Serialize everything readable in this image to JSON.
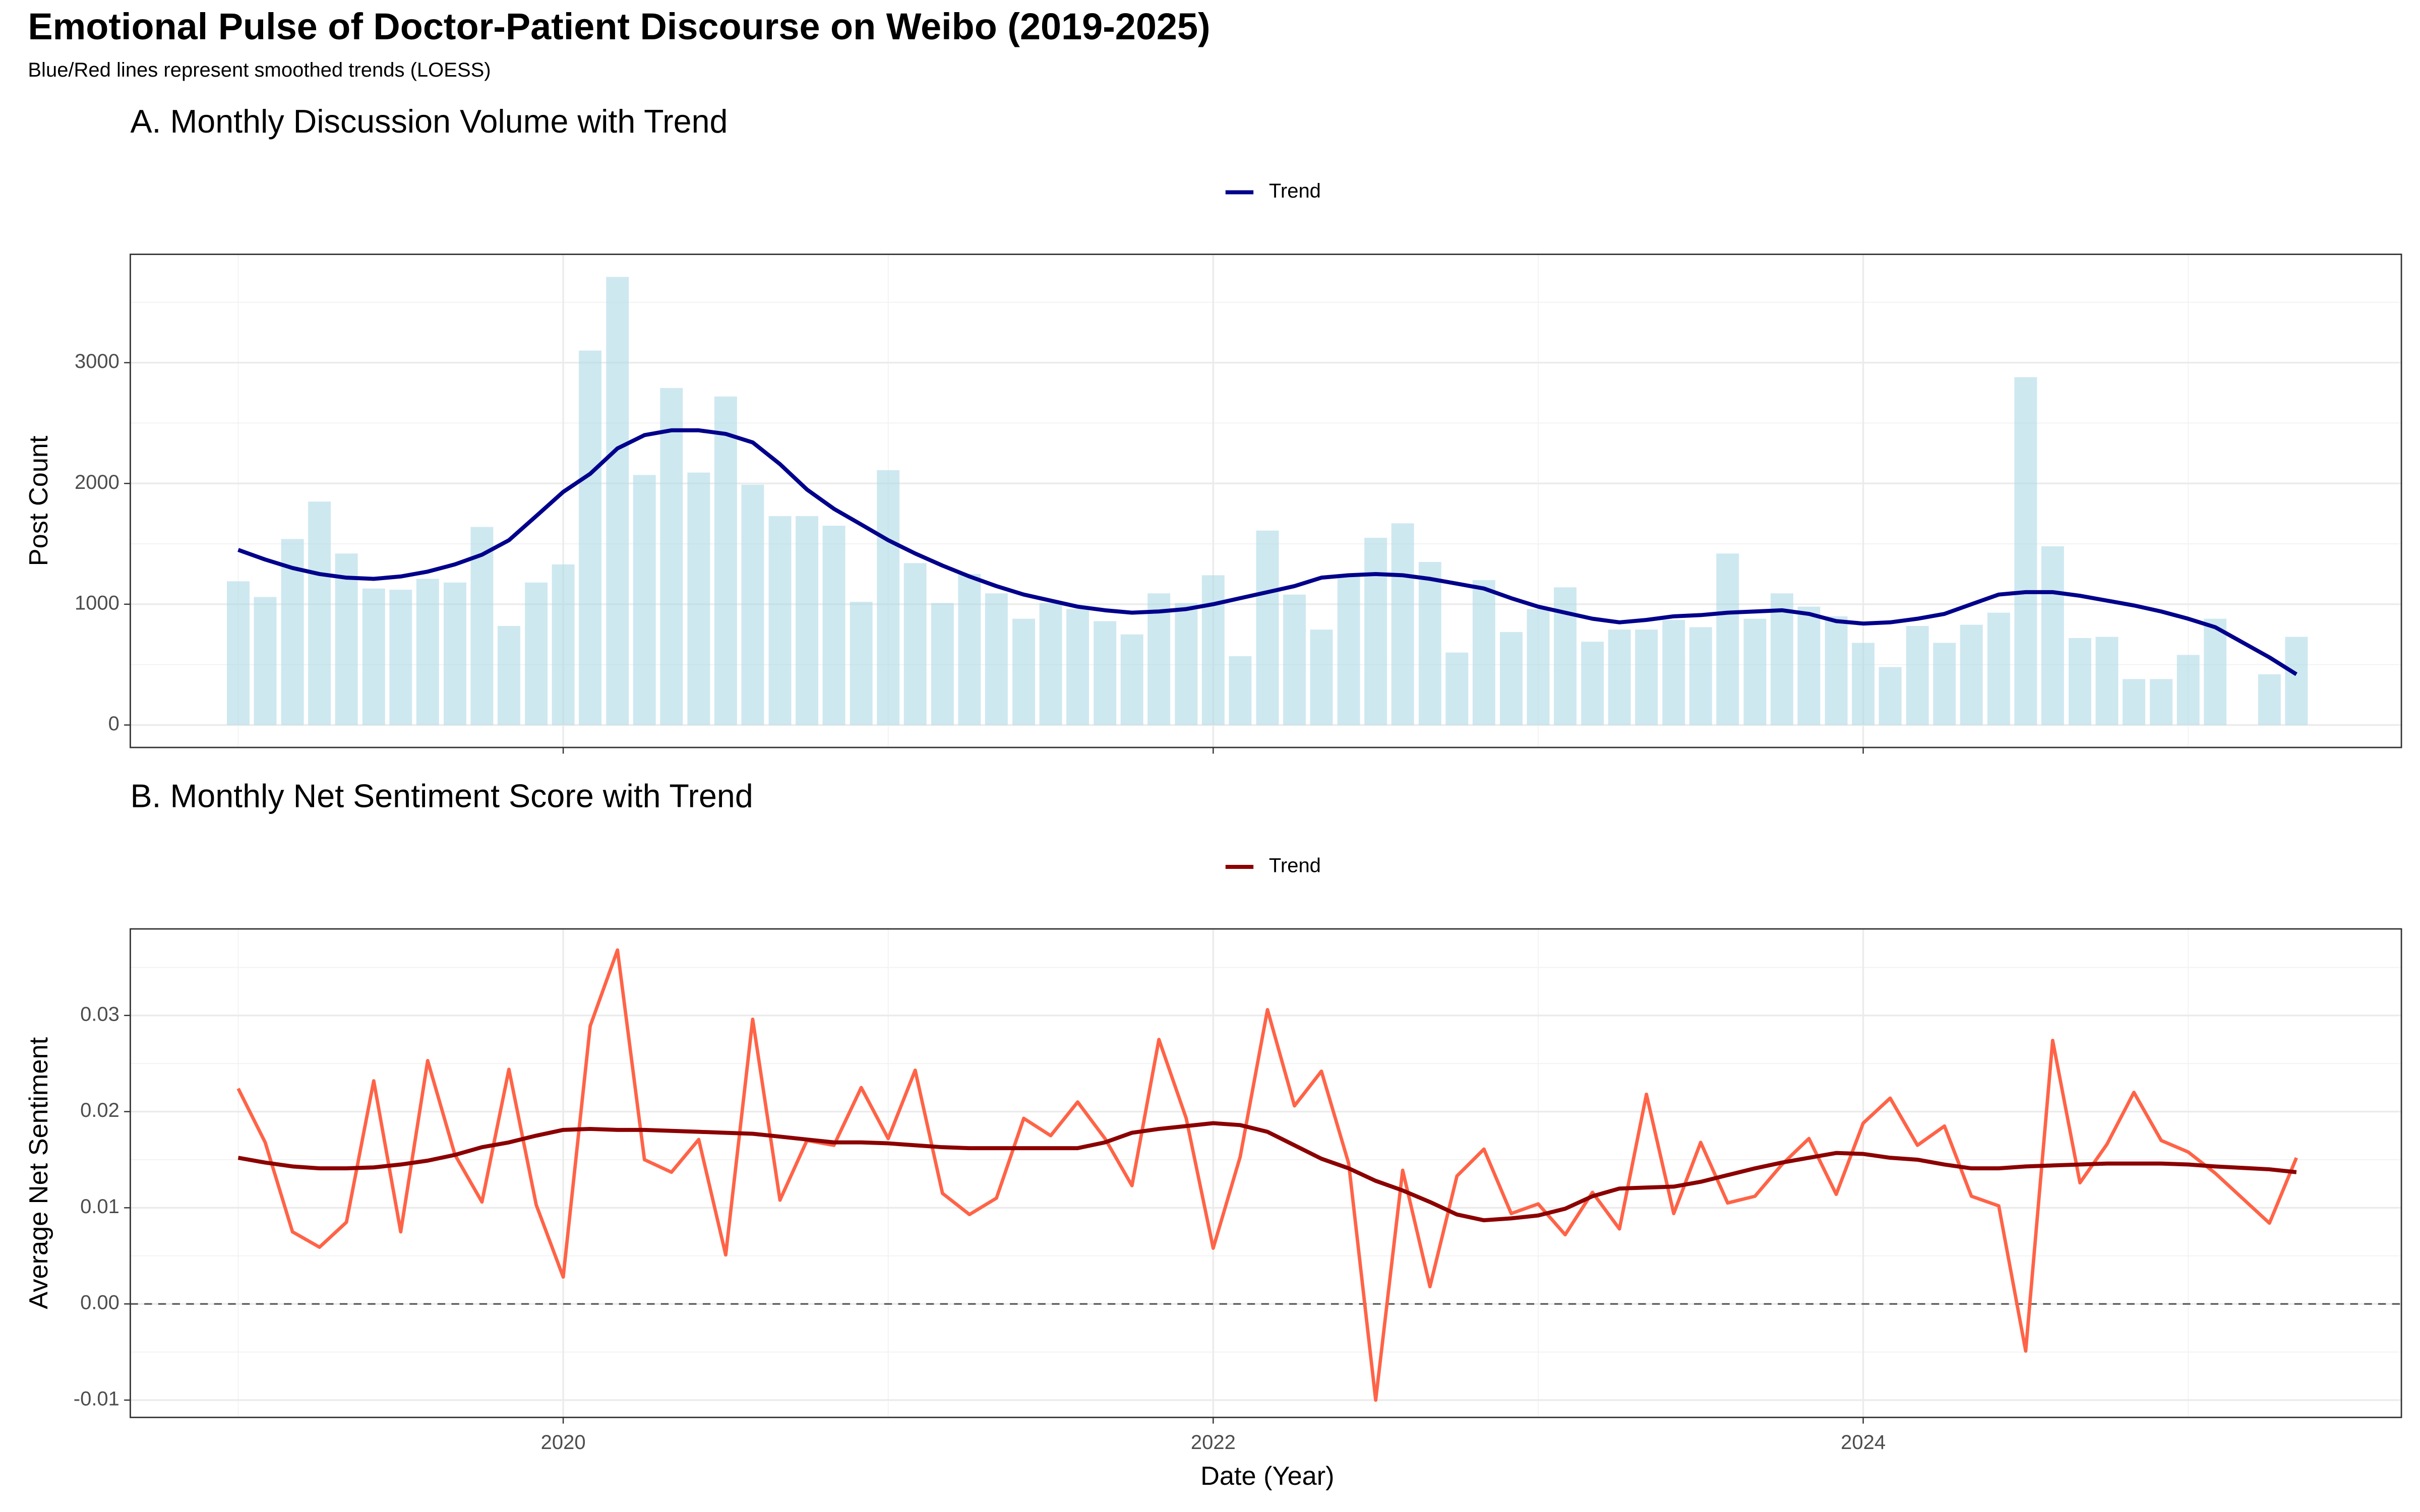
{
  "title": "Emotional Pulse of Doctor-Patient Discourse on Weibo (2019-2025)",
  "subtitle": "Blue/Red lines represent smoothed trends (LOESS)",
  "x_label": "Date (Year)",
  "chart_data": [
    {
      "type": "bar",
      "title": "A. Monthly Discussion Volume with Trend",
      "y_label": "Post Count",
      "x": [
        2019,
        2019.083,
        2019.167,
        2019.25,
        2019.333,
        2019.417,
        2019.5,
        2019.583,
        2019.667,
        2019.75,
        2019.833,
        2019.917,
        2020,
        2020.083,
        2020.167,
        2020.25,
        2020.333,
        2020.417,
        2020.5,
        2020.583,
        2020.667,
        2020.75,
        2020.833,
        2020.917,
        2021,
        2021.083,
        2021.167,
        2021.25,
        2021.333,
        2021.417,
        2021.5,
        2021.583,
        2021.667,
        2021.75,
        2021.833,
        2021.917,
        2022,
        2022.083,
        2022.167,
        2022.25,
        2022.333,
        2022.417,
        2022.5,
        2022.583,
        2022.667,
        2022.75,
        2022.833,
        2022.917,
        2023,
        2023.083,
        2023.167,
        2023.25,
        2023.333,
        2023.417,
        2023.5,
        2023.583,
        2023.667,
        2023.75,
        2023.833,
        2023.917,
        2024,
        2024.083,
        2024.167,
        2024.25,
        2024.333,
        2024.417,
        2024.5,
        2024.583,
        2024.667,
        2024.75,
        2024.833,
        2024.917,
        2025,
        2025.083,
        2025.25,
        2025.333
      ],
      "series": [
        {
          "type": "bar",
          "color": "#add8e6",
          "opacity": 0.6,
          "values": [
            1190,
            1060,
            1540,
            1850,
            1420,
            1130,
            1120,
            1210,
            1180,
            1640,
            820,
            1180,
            1330,
            3100,
            3710,
            2070,
            2790,
            2090,
            2720,
            1990,
            1730,
            1730,
            1650,
            1020,
            2110,
            1340,
            1010,
            1250,
            1090,
            880,
            1010,
            960,
            860,
            750,
            1090,
            1010,
            1240,
            570,
            1610,
            1080,
            790,
            1250,
            1550,
            1670,
            1350,
            600,
            1200,
            770,
            960,
            1140,
            690,
            790,
            790,
            870,
            810,
            1420,
            880,
            1090,
            980,
            900,
            680,
            480,
            820,
            680,
            830,
            930,
            2880,
            1480,
            720,
            730,
            380,
            380,
            580,
            880,
            420,
            730
          ]
        },
        {
          "type": "line",
          "name": "Trend",
          "color": "#00008b",
          "values": [
            1450,
            1370,
            1300,
            1250,
            1220,
            1210,
            1230,
            1270,
            1330,
            1410,
            1530,
            1730,
            1930,
            2080,
            2290,
            2400,
            2440,
            2440,
            2410,
            2340,
            2160,
            1950,
            1790,
            1660,
            1530,
            1420,
            1320,
            1230,
            1150,
            1080,
            1030,
            980,
            950,
            930,
            940,
            960,
            1000,
            1050,
            1100,
            1150,
            1220,
            1240,
            1250,
            1240,
            1210,
            1170,
            1130,
            1050,
            980,
            930,
            880,
            850,
            870,
            900,
            910,
            930,
            940,
            950,
            920,
            860,
            840,
            850,
            880,
            920,
            1000,
            1080,
            1100,
            1100,
            1070,
            1030,
            990,
            940,
            880,
            810,
            560,
            420
          ]
        }
      ],
      "xlim": [
        2018.668,
        2025.656
      ],
      "xticks": [
        2020,
        2022,
        2024
      ],
      "xtick_labels_shown": false,
      "ylim": [
        -186,
        3897
      ],
      "yticks": [
        0,
        1000,
        2000,
        3000
      ],
      "grid": true,
      "legend": "top"
    },
    {
      "type": "line",
      "title": "B. Monthly Net Sentiment Score with Trend",
      "y_label": "Average Net Sentiment",
      "x": [
        2019,
        2019.083,
        2019.167,
        2019.25,
        2019.333,
        2019.417,
        2019.5,
        2019.583,
        2019.667,
        2019.75,
        2019.833,
        2019.917,
        2020,
        2020.083,
        2020.167,
        2020.25,
        2020.333,
        2020.417,
        2020.5,
        2020.583,
        2020.667,
        2020.75,
        2020.833,
        2020.917,
        2021,
        2021.083,
        2021.167,
        2021.25,
        2021.333,
        2021.417,
        2021.5,
        2021.583,
        2021.667,
        2021.75,
        2021.833,
        2021.917,
        2022,
        2022.083,
        2022.167,
        2022.25,
        2022.333,
        2022.417,
        2022.5,
        2022.583,
        2022.667,
        2022.75,
        2022.833,
        2022.917,
        2023,
        2023.083,
        2023.167,
        2023.25,
        2023.333,
        2023.417,
        2023.5,
        2023.583,
        2023.667,
        2023.75,
        2023.833,
        2023.917,
        2024,
        2024.083,
        2024.167,
        2024.25,
        2024.333,
        2024.417,
        2024.5,
        2024.583,
        2024.667,
        2024.75,
        2024.833,
        2024.917,
        2025,
        2025.083,
        2025.25,
        2025.333
      ],
      "series": [
        {
          "color": "#ff6347",
          "values": [
            0.0224,
            0.0168,
            0.0075,
            0.0059,
            0.0085,
            0.0232,
            0.0075,
            0.0253,
            0.0155,
            0.0106,
            0.0244,
            0.0103,
            0.0028,
            0.0289,
            0.0368,
            0.015,
            0.0137,
            0.0171,
            0.0051,
            0.0296,
            0.0108,
            0.017,
            0.0165,
            0.0225,
            0.0172,
            0.0243,
            0.0115,
            0.0093,
            0.011,
            0.0193,
            0.0175,
            0.021,
            0.0172,
            0.0123,
            0.0275,
            0.0193,
            0.0058,
            0.0153,
            0.0306,
            0.0206,
            0.0242,
            0.0146,
            -0.01,
            0.0139,
            0.0018,
            0.0133,
            0.0161,
            0.0094,
            0.0104,
            0.0072,
            0.0116,
            0.0078,
            0.0218,
            0.0094,
            0.0168,
            0.0105,
            0.0112,
            0.0145,
            0.0172,
            0.0114,
            0.0188,
            0.0214,
            0.0165,
            0.0185,
            0.0112,
            0.0102,
            -0.0049,
            0.0274,
            0.0126,
            0.0166,
            0.022,
            0.017,
            0.0158,
            0.0136,
            0.0084,
            0.0152
          ]
        },
        {
          "name": "Trend",
          "color": "#8b0000",
          "values": [
            0.0152,
            0.0147,
            0.0143,
            0.0141,
            0.0141,
            0.0142,
            0.0145,
            0.0149,
            0.0155,
            0.0163,
            0.0168,
            0.0175,
            0.0181,
            0.0182,
            0.0181,
            0.0181,
            0.018,
            0.0179,
            0.0178,
            0.0177,
            0.0174,
            0.0171,
            0.0168,
            0.0168,
            0.0167,
            0.0165,
            0.0163,
            0.0162,
            0.0162,
            0.0162,
            0.0162,
            0.0162,
            0.0168,
            0.0178,
            0.0182,
            0.0185,
            0.0188,
            0.0186,
            0.0179,
            0.0165,
            0.0151,
            0.0141,
            0.0128,
            0.0118,
            0.0106,
            0.0093,
            0.0087,
            0.0089,
            0.0092,
            0.0099,
            0.0112,
            0.012,
            0.0121,
            0.0122,
            0.0127,
            0.0134,
            0.0141,
            0.0147,
            0.0152,
            0.0157,
            0.0156,
            0.0152,
            0.015,
            0.0145,
            0.0141,
            0.0141,
            0.0143,
            0.0144,
            0.0145,
            0.0146,
            0.0146,
            0.0146,
            0.0145,
            0.0143,
            0.014,
            0.0137
          ]
        }
      ],
      "xlim": [
        2018.668,
        2025.656
      ],
      "xticks": [
        2020,
        2022,
        2024
      ],
      "xtick_labels_shown": true,
      "ylim": [
        -0.0118,
        0.039
      ],
      "yticks": [
        -0.01,
        {
          "value": 0,
          "label": "0.00"
        },
        0.01,
        0.02,
        0.03
      ],
      "reference_line": 0,
      "grid": true,
      "legend": "top"
    }
  ]
}
